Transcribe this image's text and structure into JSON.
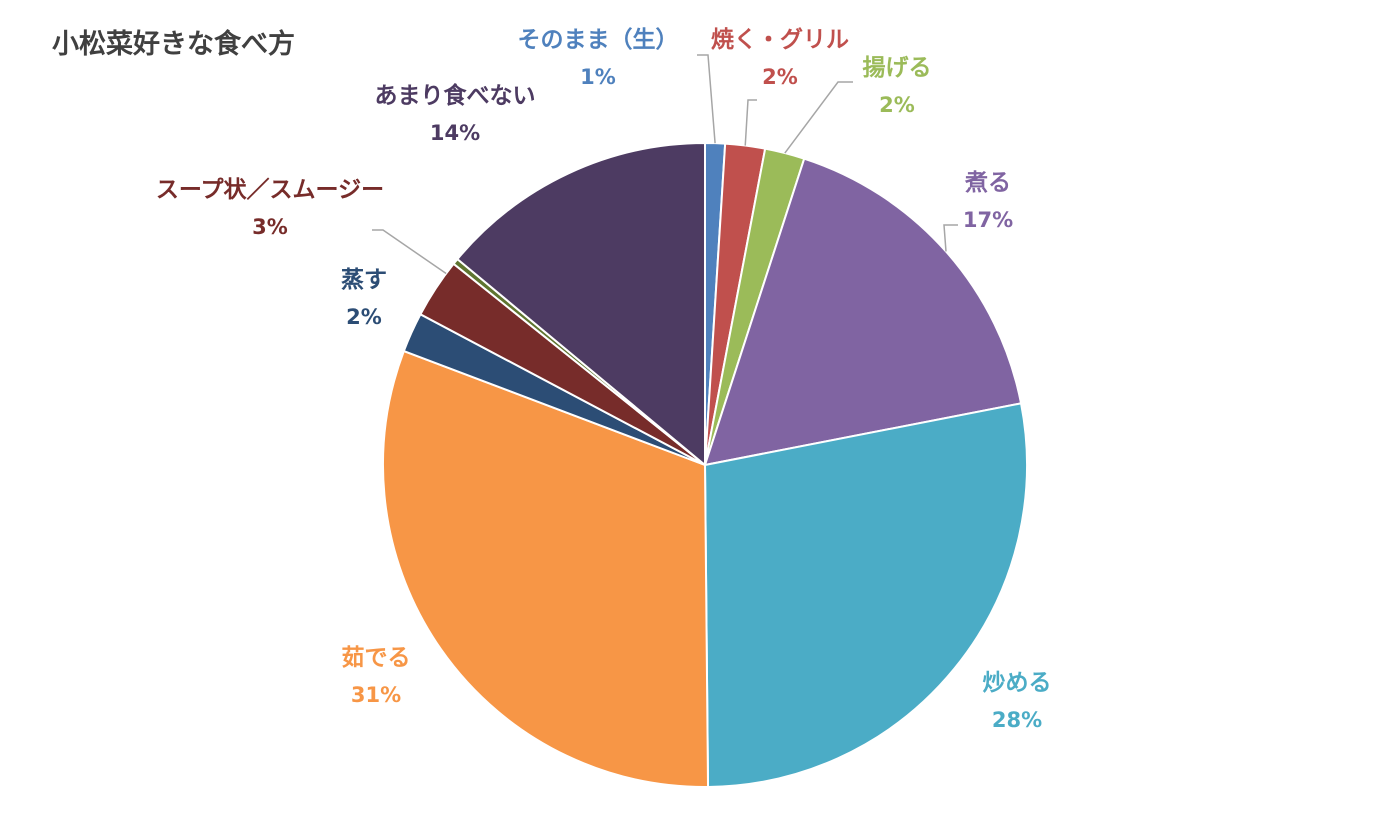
{
  "chart_data": {
    "type": "pie",
    "title": "小松菜好きな食べ方",
    "categories": [
      "そのまま（生）",
      "焼く・グリル",
      "揚げる",
      "煮る",
      "炒める",
      "茹でる",
      "蒸す",
      "スープ状／スムージー",
      "",
      "あまり食べない"
    ],
    "values": [
      1,
      2,
      2,
      17,
      28,
      31,
      2,
      3,
      0.3,
      14
    ],
    "value_labels": [
      "1%",
      "2%",
      "2%",
      "17%",
      "28%",
      "31%",
      "2%",
      "3%",
      "",
      "14%"
    ],
    "colors": [
      "#4F81BD",
      "#C0504D",
      "#9BBB59",
      "#8064A2",
      "#4BACC6",
      "#F79646",
      "#2C4D75",
      "#772C2A",
      "#5F7530",
      "#4D3B62"
    ],
    "label_colors": [
      "#4F81BD",
      "#C0504D",
      "#9BBB59",
      "#8064A2",
      "#4BACC6",
      "#F79646",
      "#2C4D75",
      "#772C2A",
      "#5F7530",
      "#4D3B62"
    ],
    "start_angle_deg": 0,
    "direction": "clockwise",
    "legend": "none",
    "data_labels": "outside with leader lines"
  }
}
